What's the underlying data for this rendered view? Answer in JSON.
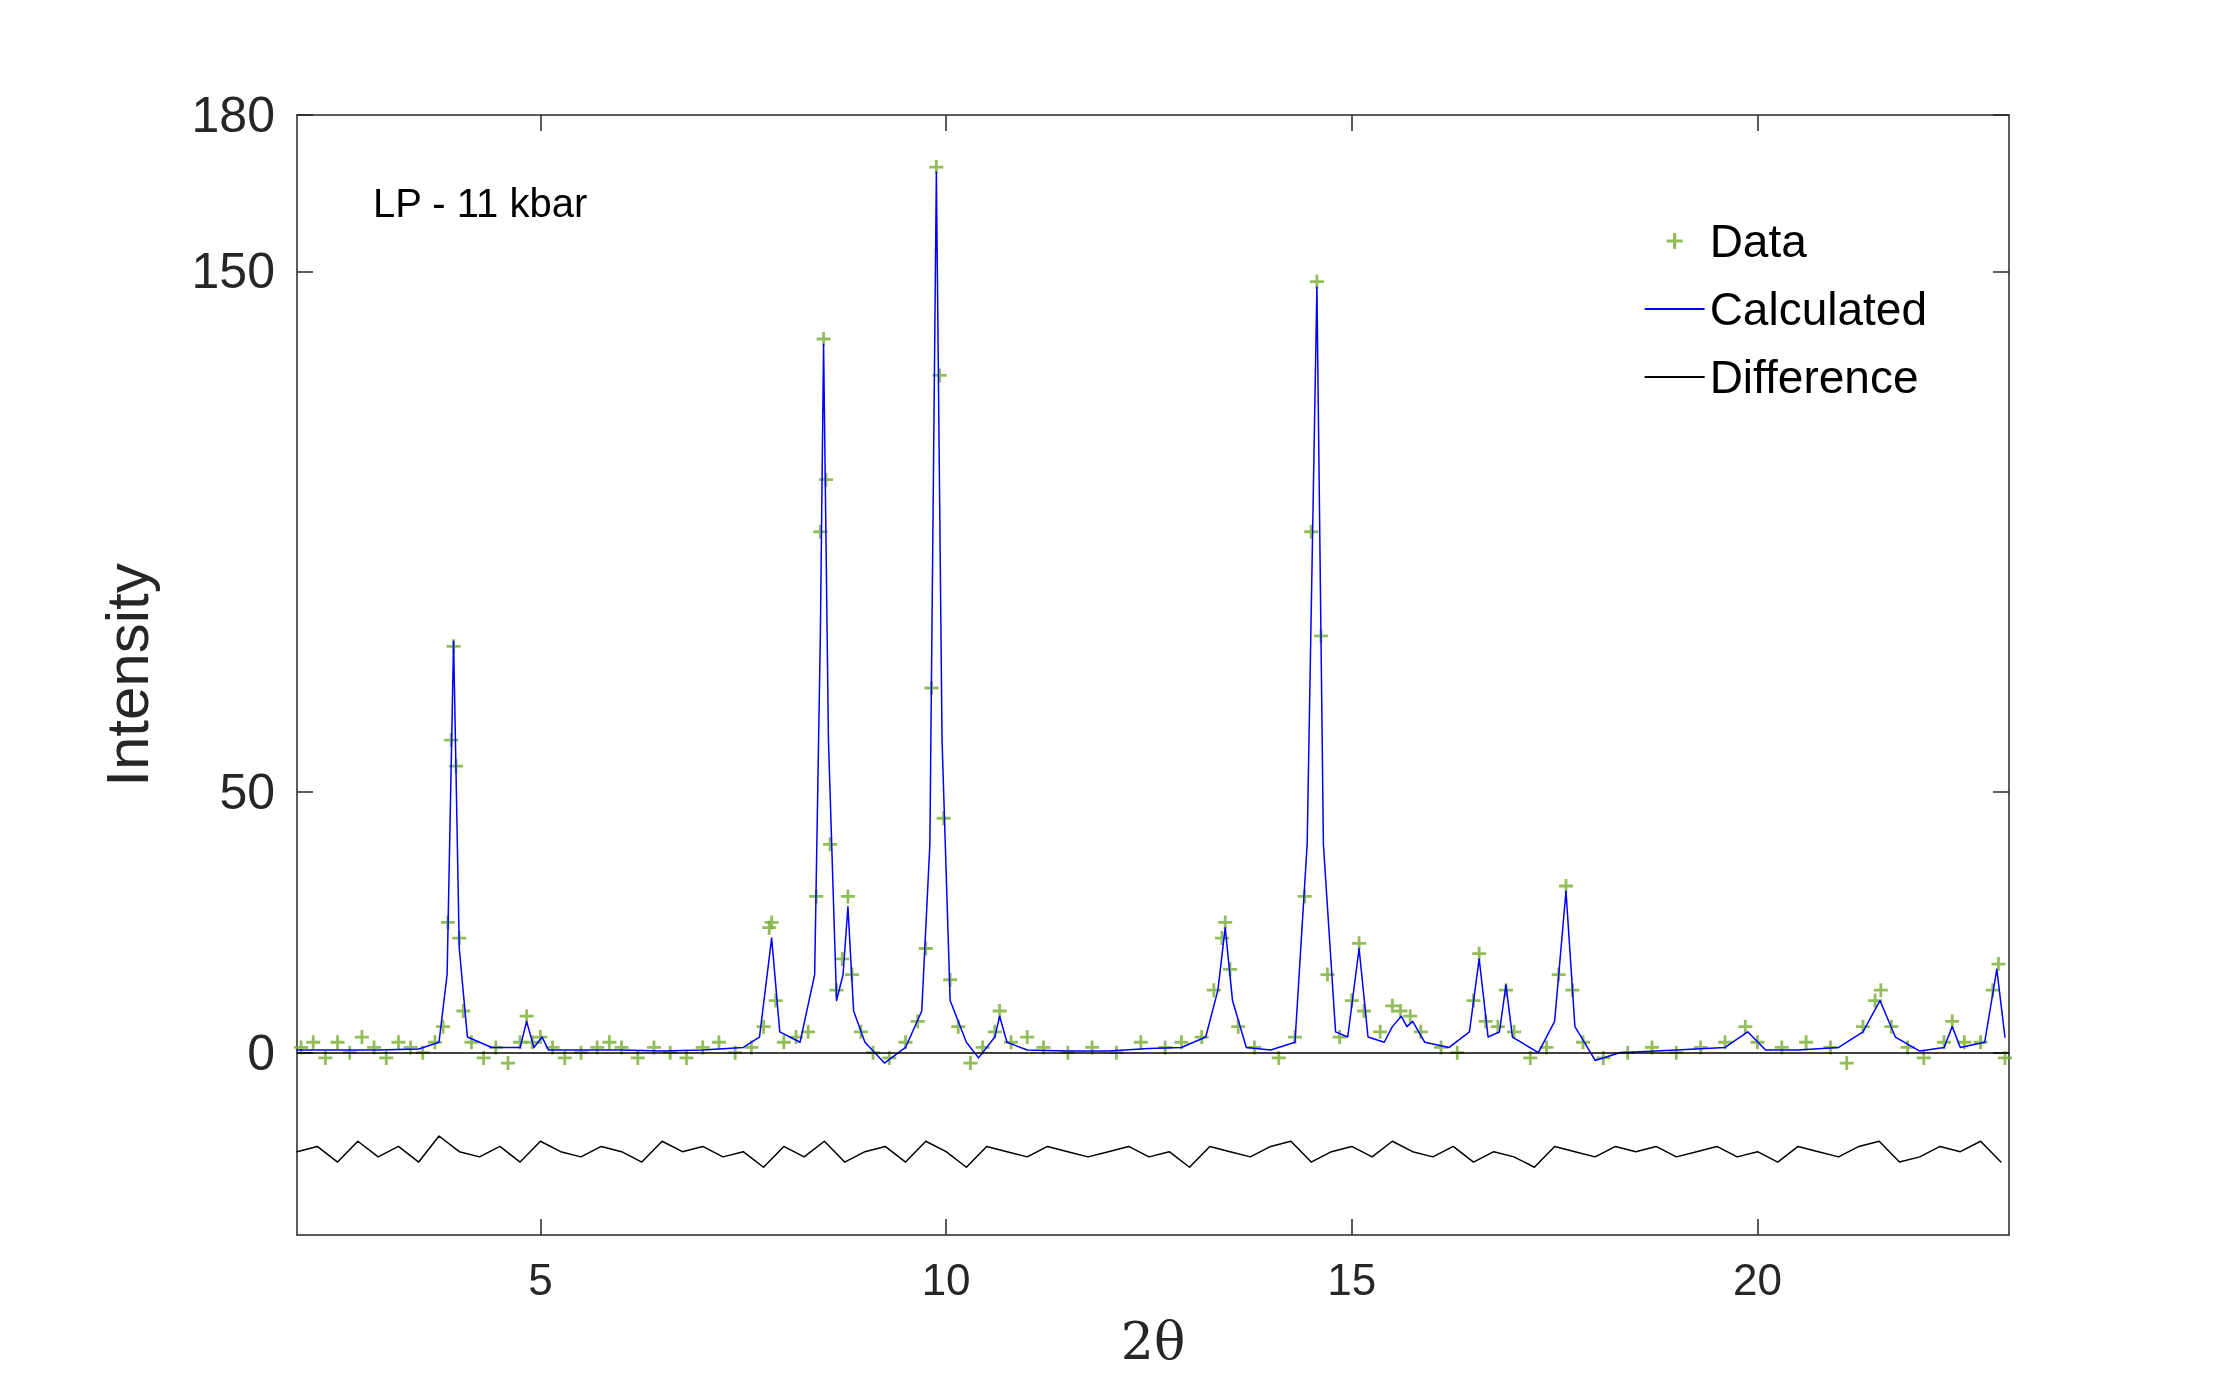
{
  "chart_data": {
    "type": "line",
    "xlabel": "2θ",
    "ylabel": "Intensity",
    "annotations": [
      "LP - 11 kbar"
    ],
    "xlim": [
      2,
      23.1
    ],
    "ylim": [
      -35,
      180
    ],
    "xticks": [
      5,
      10,
      15,
      20
    ],
    "yticks": [
      0,
      50,
      150,
      180
    ],
    "grid": false,
    "legend": "top right",
    "ref_lines": [
      {
        "axis": "y",
        "value": 0,
        "color": "#000000"
      }
    ],
    "series": [
      {
        "name": "Data",
        "type": "scatter",
        "marker": "cross",
        "color": "#77ac30",
        "x": [
          2.05,
          2.2,
          2.35,
          2.5,
          2.65,
          2.8,
          2.95,
          3.1,
          3.25,
          3.4,
          3.55,
          3.7,
          3.8,
          3.86,
          3.9,
          3.93,
          3.96,
          4.0,
          4.05,
          4.15,
          4.3,
          4.45,
          4.6,
          4.75,
          4.83,
          4.9,
          5.0,
          5.15,
          5.3,
          5.5,
          5.7,
          5.85,
          6.0,
          6.2,
          6.4,
          6.6,
          6.8,
          7.0,
          7.2,
          7.4,
          7.6,
          7.75,
          7.82,
          7.85,
          7.9,
          8.0,
          8.15,
          8.3,
          8.4,
          8.45,
          8.49,
          8.52,
          8.57,
          8.65,
          8.72,
          8.79,
          8.84,
          8.95,
          9.1,
          9.3,
          9.5,
          9.65,
          9.75,
          9.82,
          9.88,
          9.92,
          9.97,
          10.05,
          10.15,
          10.3,
          10.45,
          10.6,
          10.66,
          10.8,
          11.0,
          11.2,
          11.5,
          11.8,
          12.1,
          12.4,
          12.7,
          12.9,
          13.15,
          13.3,
          13.4,
          13.44,
          13.5,
          13.6,
          13.8,
          14.1,
          14.3,
          14.42,
          14.5,
          14.57,
          14.62,
          14.7,
          14.85,
          15.0,
          15.09,
          15.15,
          15.35,
          15.5,
          15.6,
          15.72,
          15.85,
          16.1,
          16.3,
          16.5,
          16.57,
          16.65,
          16.8,
          16.9,
          17.0,
          17.2,
          17.4,
          17.55,
          17.64,
          17.72,
          17.85,
          18.1,
          18.4,
          18.7,
          19.0,
          19.3,
          19.6,
          19.85,
          20.0,
          20.3,
          20.6,
          20.9,
          21.1,
          21.3,
          21.45,
          21.52,
          21.65,
          21.85,
          22.05,
          22.3,
          22.4,
          22.55,
          22.75,
          22.9,
          22.97,
          23.05
        ],
        "values": [
          1,
          2,
          -1,
          2,
          0,
          3,
          1,
          -1,
          2,
          1,
          0,
          2,
          5,
          25,
          60,
          78,
          55,
          22,
          8,
          2,
          -1,
          1,
          -2,
          2,
          7,
          2,
          3,
          1,
          -1,
          0,
          1,
          2,
          1,
          -1,
          1,
          0,
          -1,
          1,
          2,
          0,
          1,
          5,
          24,
          25,
          10,
          2,
          3,
          4,
          30,
          100,
          137,
          110,
          40,
          12,
          18,
          30,
          15,
          4,
          0,
          -1,
          2,
          6,
          20,
          70,
          170,
          130,
          45,
          14,
          5,
          -2,
          1,
          4,
          8,
          2,
          3,
          1,
          0,
          1,
          0,
          2,
          1,
          2,
          3,
          12,
          22,
          25,
          16,
          5,
          1,
          -1,
          3,
          30,
          100,
          148,
          80,
          15,
          3,
          10,
          21,
          8,
          4,
          9,
          8,
          7,
          4,
          1,
          0,
          10,
          19,
          6,
          5,
          12,
          4,
          -1,
          1,
          15,
          32,
          12,
          2,
          -1,
          0,
          1,
          0,
          1,
          2,
          5,
          2,
          1,
          2,
          1,
          -2,
          5,
          10,
          12,
          5,
          1,
          -1,
          2,
          6,
          2,
          2,
          12,
          17,
          -1
        ]
      },
      {
        "name": "Calculated",
        "type": "line",
        "color": "#0000ff",
        "x": [
          2.0,
          2.5,
          3.0,
          3.5,
          3.75,
          3.85,
          3.93,
          4.0,
          4.1,
          4.4,
          4.75,
          4.83,
          4.92,
          5.02,
          5.1,
          5.5,
          6.0,
          6.5,
          7.0,
          7.5,
          7.7,
          7.85,
          7.95,
          8.2,
          8.38,
          8.45,
          8.49,
          8.55,
          8.65,
          8.73,
          8.79,
          8.86,
          9.0,
          9.24,
          9.5,
          9.7,
          9.8,
          9.88,
          9.95,
          10.05,
          10.25,
          10.4,
          10.6,
          10.66,
          10.75,
          11.0,
          11.5,
          12.0,
          12.5,
          12.9,
          13.2,
          13.35,
          13.44,
          13.53,
          13.7,
          14.0,
          14.3,
          14.45,
          14.57,
          14.65,
          14.8,
          14.95,
          15.09,
          15.2,
          15.4,
          15.5,
          15.61,
          15.68,
          15.75,
          15.9,
          16.2,
          16.45,
          16.57,
          16.68,
          16.82,
          16.9,
          16.98,
          17.3,
          17.5,
          17.64,
          17.75,
          18.0,
          18.3,
          19.0,
          19.6,
          19.88,
          20.1,
          20.5,
          21.0,
          21.3,
          21.51,
          21.7,
          22.0,
          22.3,
          22.4,
          22.5,
          22.8,
          22.95,
          23.05
        ],
        "values": [
          0.5,
          0.5,
          0.5,
          0.7,
          2,
          15,
          79,
          20,
          3,
          1,
          1,
          6,
          1,
          3,
          0.5,
          0.5,
          0.5,
          0.3,
          0.5,
          1,
          3,
          22,
          4,
          2,
          15,
          80,
          136,
          60,
          10,
          15,
          28,
          8,
          2,
          -2,
          1,
          8,
          40,
          169,
          60,
          10,
          2,
          -1,
          3,
          7,
          2,
          0.5,
          0.3,
          0.3,
          0.8,
          1,
          3,
          12,
          24,
          10,
          1,
          0.5,
          2,
          40,
          147,
          40,
          4,
          3,
          20,
          3,
          2,
          5,
          7,
          5,
          6,
          2,
          1,
          4,
          18,
          3,
          4,
          13,
          3,
          0,
          6,
          31,
          5,
          -1.5,
          0,
          0.5,
          1,
          4,
          0.5,
          0.5,
          1,
          4,
          10,
          3,
          0.3,
          1,
          5,
          1,
          2,
          16,
          3
        ]
      },
      {
        "name": "Difference",
        "type": "line",
        "color": "#000000",
        "x": [
          2.0,
          2.25,
          2.5,
          2.75,
          3.0,
          3.25,
          3.5,
          3.75,
          4.0,
          4.25,
          4.5,
          4.75,
          5.0,
          5.25,
          5.5,
          5.75,
          6.0,
          6.25,
          6.5,
          6.75,
          7.0,
          7.25,
          7.5,
          7.75,
          8.0,
          8.25,
          8.5,
          8.75,
          9.0,
          9.25,
          9.5,
          9.75,
          10.0,
          10.25,
          10.5,
          10.75,
          11.0,
          11.25,
          11.5,
          11.75,
          12.0,
          12.25,
          12.5,
          12.75,
          13.0,
          13.25,
          13.5,
          13.75,
          14.0,
          14.25,
          14.5,
          14.75,
          15.0,
          15.25,
          15.5,
          15.75,
          16.0,
          16.25,
          16.5,
          16.75,
          17.0,
          17.25,
          17.5,
          17.75,
          18.0,
          18.25,
          18.5,
          18.75,
          19.0,
          19.25,
          19.5,
          19.75,
          20.0,
          20.25,
          20.5,
          20.75,
          21.0,
          21.25,
          21.5,
          21.75,
          22.0,
          22.25,
          22.5,
          22.75,
          23.0
        ],
        "values": [
          -19,
          -18,
          -21,
          -17,
          -20,
          -18,
          -21,
          -16,
          -19,
          -20,
          -18,
          -21,
          -17,
          -19,
          -20,
          -18,
          -19,
          -21,
          -17,
          -19,
          -18,
          -20,
          -19,
          -22,
          -18,
          -20,
          -17,
          -21,
          -19,
          -18,
          -21,
          -17,
          -19,
          -22,
          -18,
          -19,
          -20,
          -18,
          -19,
          -20,
          -19,
          -18,
          -20,
          -19,
          -22,
          -18,
          -19,
          -20,
          -18,
          -17,
          -21,
          -19,
          -18,
          -20,
          -17,
          -19,
          -20,
          -18,
          -21,
          -19,
          -20,
          -22,
          -18,
          -19,
          -20,
          -18,
          -19,
          -18,
          -20,
          -19,
          -18,
          -20,
          -19,
          -21,
          -18,
          -19,
          -20,
          -18,
          -17,
          -21,
          -20,
          -18,
          -19,
          -17,
          -21
        ]
      }
    ]
  }
}
